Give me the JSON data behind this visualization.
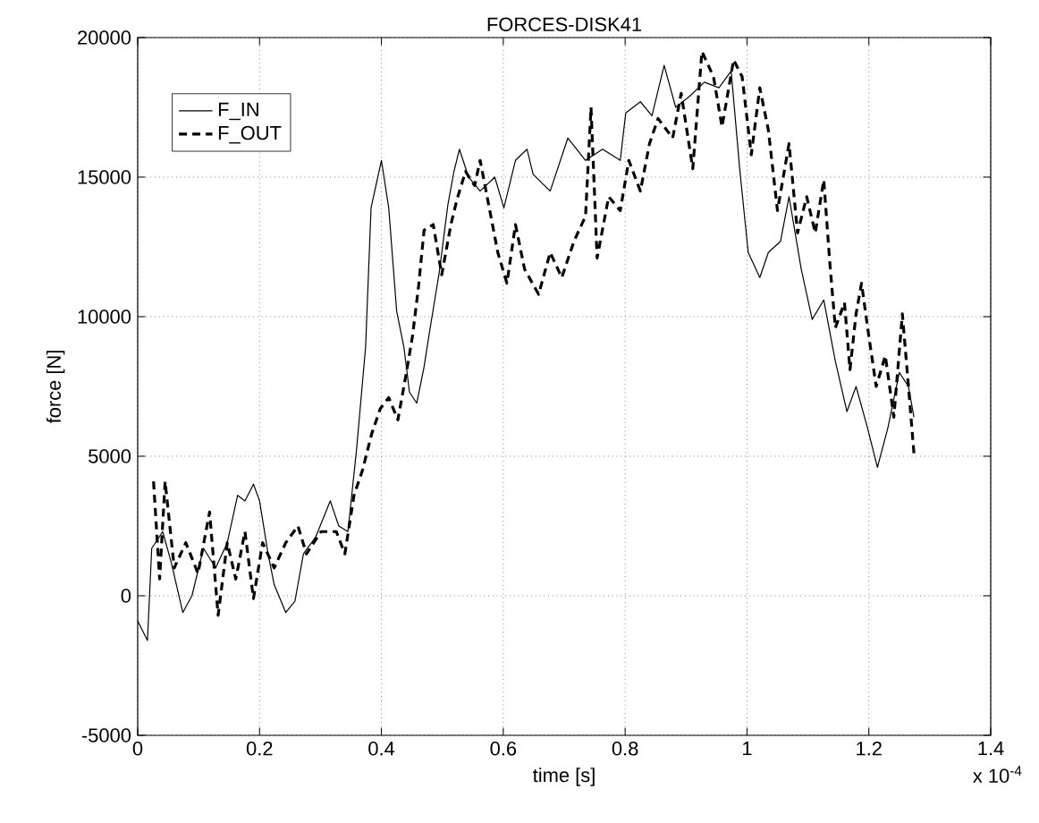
{
  "chart_data": {
    "type": "line",
    "title": "FORCES-DISK41",
    "xlabel": "time [s]",
    "ylabel": "force [N]",
    "xlim": [
      0,
      1.4
    ],
    "ylim": [
      -5000,
      20000
    ],
    "xticks": [
      0,
      0.2,
      0.4,
      0.6,
      0.8,
      1,
      1.2,
      1.4
    ],
    "yticks": [
      -5000,
      0,
      5000,
      10000,
      15000,
      20000
    ],
    "grid": true,
    "legend": "top left",
    "annotations": [
      "x 10$^{-4}$"
    ],
    "series": [
      {
        "name": "F_IN",
        "color": "#000000",
        "line_style": "solid",
        "x": [
          0,
          0.016,
          0.023,
          0.041,
          0.055,
          0.074,
          0.089,
          0.108,
          0.128,
          0.147,
          0.164,
          0.176,
          0.19,
          0.2,
          0.214,
          0.224,
          0.243,
          0.258,
          0.272,
          0.292,
          0.316,
          0.33,
          0.345,
          0.359,
          0.374,
          0.383,
          0.4,
          0.412,
          0.425,
          0.437,
          0.446,
          0.458,
          0.47,
          0.48,
          0.495,
          0.509,
          0.519,
          0.528,
          0.543,
          0.562,
          0.586,
          0.601,
          0.62,
          0.639,
          0.649,
          0.677,
          0.706,
          0.735,
          0.763,
          0.792,
          0.801,
          0.825,
          0.844,
          0.864,
          0.883,
          0.906,
          0.93,
          0.954,
          0.974,
          0.988,
          1.002,
          1.021,
          1.035,
          1.055,
          1.069,
          1.089,
          1.107,
          1.126,
          1.145,
          1.164,
          1.179,
          1.198,
          1.214,
          1.231,
          1.25,
          1.265,
          1.274
        ],
        "values": [
          -900,
          -1600,
          1700,
          2300,
          1200,
          -600,
          0,
          1700,
          1000,
          1900,
          3600,
          3400,
          4000,
          3400,
          1500,
          400,
          -600,
          -200,
          1500,
          2100,
          3400,
          2500,
          2300,
          5200,
          8900,
          13900,
          15600,
          13900,
          10200,
          8900,
          7300,
          6900,
          8200,
          9600,
          11600,
          14000,
          15200,
          16000,
          15000,
          14500,
          15000,
          13900,
          15600,
          16000,
          15100,
          14500,
          16400,
          15600,
          16000,
          15600,
          17300,
          17700,
          17200,
          19000,
          17500,
          17900,
          18400,
          18200,
          18800,
          15300,
          12300,
          11400,
          12300,
          12700,
          14300,
          11700,
          9900,
          10600,
          8400,
          6600,
          7500,
          6000,
          4600,
          6000,
          8000,
          7500,
          6400
        ]
      },
      {
        "name": "F_OUT",
        "color": "#000000",
        "line_style": "dashed",
        "x": [
          0.026,
          0.036,
          0.045,
          0.06,
          0.079,
          0.099,
          0.118,
          0.132,
          0.147,
          0.161,
          0.176,
          0.19,
          0.205,
          0.224,
          0.243,
          0.263,
          0.277,
          0.301,
          0.326,
          0.34,
          0.355,
          0.369,
          0.384,
          0.398,
          0.412,
          0.427,
          0.441,
          0.451,
          0.461,
          0.47,
          0.485,
          0.499,
          0.514,
          0.524,
          0.538,
          0.553,
          0.562,
          0.577,
          0.591,
          0.606,
          0.62,
          0.635,
          0.658,
          0.677,
          0.696,
          0.716,
          0.735,
          0.744,
          0.754,
          0.773,
          0.792,
          0.806,
          0.825,
          0.84,
          0.854,
          0.878,
          0.892,
          0.911,
          0.926,
          0.945,
          0.959,
          0.978,
          0.992,
          1.007,
          1.021,
          1.035,
          1.05,
          1.069,
          1.083,
          1.098,
          1.112,
          1.126,
          1.136,
          1.145,
          1.16,
          1.169,
          1.179,
          1.188,
          1.198,
          1.212,
          1.227,
          1.241,
          1.255,
          1.265,
          1.274
        ],
        "values": [
          4100,
          600,
          4100,
          1000,
          1900,
          800,
          3000,
          -700,
          1900,
          600,
          2300,
          -100,
          1900,
          1000,
          1900,
          2500,
          1500,
          2300,
          2300,
          1500,
          3600,
          4500,
          5800,
          6700,
          7100,
          6300,
          8000,
          9300,
          11100,
          13100,
          13300,
          11500,
          13300,
          14200,
          15200,
          14700,
          15600,
          13900,
          12300,
          11200,
          13300,
          11700,
          10800,
          12300,
          11400,
          12700,
          13600,
          17500,
          12100,
          14300,
          13800,
          15600,
          14500,
          16200,
          17100,
          16400,
          18000,
          15300,
          19500,
          18600,
          16800,
          19200,
          18600,
          15800,
          18200,
          16700,
          13800,
          16200,
          13000,
          14300,
          13000,
          14900,
          11900,
          9600,
          10500,
          8100,
          10100,
          11200,
          9600,
          7500,
          8600,
          6400,
          10100,
          7500,
          5100
        ]
      }
    ]
  }
}
